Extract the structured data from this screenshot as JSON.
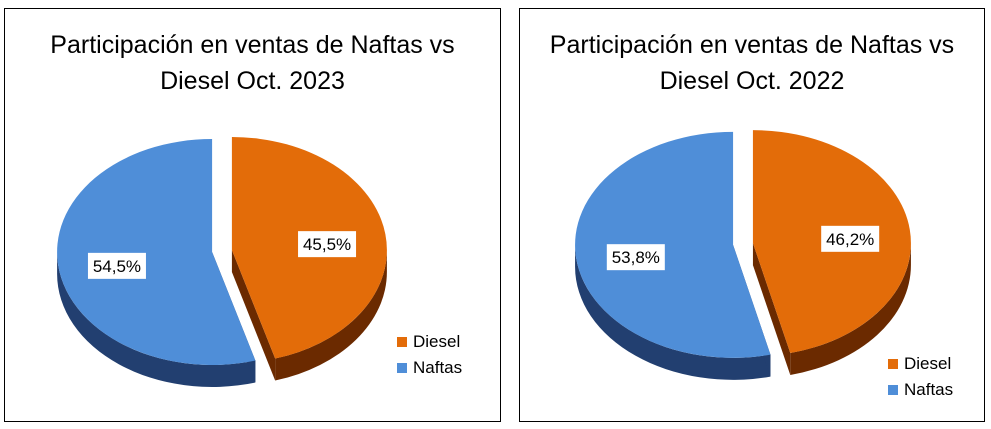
{
  "colors": {
    "diesel": "#e36c09",
    "naftas": "#4f8ed8",
    "diesel_side": "#6b2a00",
    "naftas_side": "#223f70"
  },
  "chart_data": [
    {
      "type": "pie",
      "title_line1": "Participación en ventas de Naftas vs",
      "title_line2": "Diesel Oct. 2023",
      "legend_position": "right",
      "slices": [
        {
          "name": "Diesel",
          "value": 45.5,
          "label": "45,5%",
          "color": "#e36c09"
        },
        {
          "name": "Naftas",
          "value": 54.5,
          "label": "54,5%",
          "color": "#4f8ed8"
        }
      ]
    },
    {
      "type": "pie",
      "title_line1": "Participación en ventas de Naftas vs",
      "title_line2": "Diesel Oct. 2022",
      "legend_position": "right",
      "slices": [
        {
          "name": "Diesel",
          "value": 46.2,
          "label": "46,2%",
          "color": "#e36c09"
        },
        {
          "name": "Naftas",
          "value": 53.8,
          "label": "53,8%",
          "color": "#4f8ed8"
        }
      ]
    }
  ]
}
